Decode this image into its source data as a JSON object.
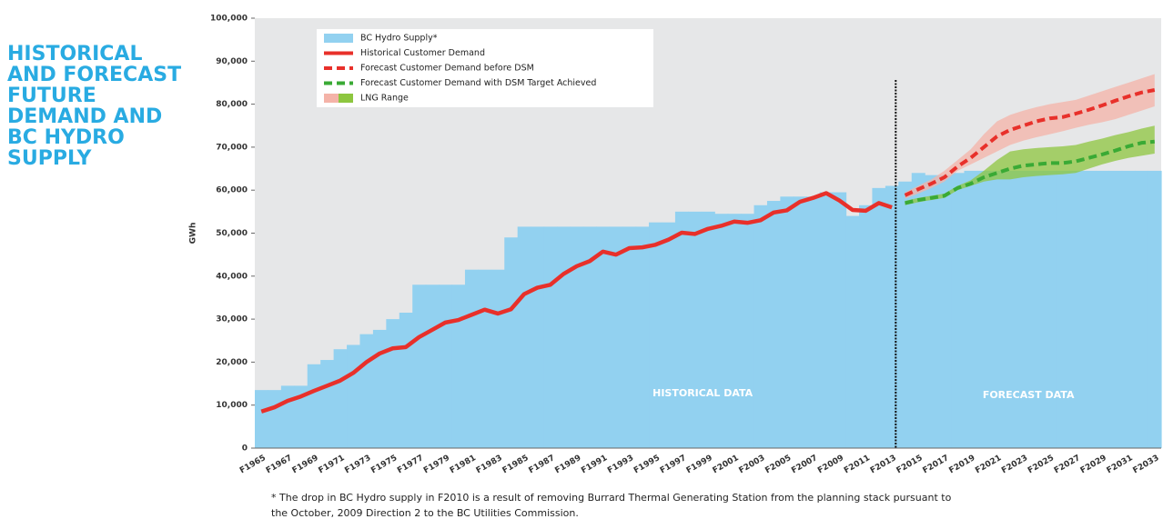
{
  "chart_data": {
    "type": "supply-demand",
    "title": [
      "HISTORICAL",
      "AND FORECAST",
      "FUTURE",
      "DEMAND AND",
      "BC HYDRO",
      "SUPPLY"
    ],
    "y_label": "GWh",
    "footnote": [
      "* The drop in BC Hydro supply in F2010 is a result of removing Burrard Thermal Generating Station from the planning stack pursuant to",
      "the October, 2009 Direction 2 to the BC Utilities Commission."
    ],
    "annotations": [
      "HISTORICAL DATA",
      "FORECAST DATA"
    ],
    "categories": [
      "F1965",
      null,
      "F1967",
      null,
      "F1969",
      null,
      "F1971",
      null,
      "F1973",
      null,
      "F1975",
      null,
      "F1977",
      null,
      "F1979",
      null,
      "F1981",
      null,
      "F1983",
      null,
      "F1985",
      null,
      "F1987",
      null,
      "F1989",
      null,
      "F1991",
      null,
      "F1993",
      null,
      "F1995",
      null,
      "F1997",
      null,
      "F1999",
      null,
      "F2001",
      null,
      "F2003",
      null,
      "F2005",
      null,
      "F2007",
      null,
      "F2009",
      null,
      "F2011",
      null,
      "F2013",
      null,
      "F2015",
      null,
      "F2017",
      null,
      "F2019",
      null,
      "F2021",
      null,
      "F2023",
      null,
      "F2025",
      null,
      "F2027",
      null,
      "F2029",
      null,
      "F2031",
      null,
      "F2033"
    ],
    "ylim": [
      0,
      100000
    ],
    "yticks": [
      0,
      {
        "value": 10000,
        "label": "10,000"
      },
      {
        "value": 20000,
        "label": "20,000"
      },
      {
        "value": 30000,
        "label": "30,000"
      },
      {
        "value": 40000,
        "label": "40,000"
      },
      {
        "value": 50000,
        "label": "50,000"
      },
      {
        "value": 60000,
        "label": "60,000"
      },
      {
        "value": 70000,
        "label": "70,000"
      },
      {
        "value": 80000,
        "label": "80,000"
      },
      {
        "value": 90000,
        "label": "90,000"
      },
      {
        "value": 100000,
        "label": "100,000"
      }
    ],
    "supply": {
      "name": "BC Hydro Supply*",
      "color": "#92d1f0",
      "values": [
        13500,
        13500,
        14500,
        14500,
        19500,
        20500,
        23000,
        24000,
        26500,
        27500,
        30000,
        31500,
        38000,
        38000,
        38000,
        38000,
        41500,
        41500,
        41500,
        49000,
        51500,
        51500,
        51500,
        51500,
        51500,
        51500,
        51500,
        51500,
        51500,
        51500,
        52500,
        52500,
        55000,
        55000,
        55000,
        54500,
        54500,
        54500,
        56500,
        57500,
        58500,
        58500,
        58500,
        59500,
        59500,
        54000,
        56500,
        60500,
        61000,
        62000,
        64000,
        63500,
        63500,
        64000,
        64500,
        64500,
        64500,
        64500,
        64500,
        64500,
        64500,
        64500,
        64500,
        64500,
        64500,
        64500,
        64500,
        64500,
        64500
      ]
    },
    "series": [
      {
        "name": "Historical Customer Demand",
        "color": "#e8302a",
        "dashed": false,
        "values": [
          8500,
          9500,
          11000,
          12000,
          13300,
          14500,
          15700,
          17500,
          20000,
          22000,
          23200,
          23500,
          25800,
          27500,
          29200,
          29800,
          31000,
          32200,
          31300,
          32300,
          35800,
          37300,
          38000,
          40500,
          42300,
          43500,
          45700,
          45000,
          46500,
          46700,
          47300,
          48500,
          50100,
          49800,
          51000,
          51700,
          52700,
          52400,
          53000,
          54800,
          55300,
          57300,
          58200,
          59300,
          57600,
          55400,
          55200,
          57000,
          56000,
          null,
          null,
          null,
          null,
          null,
          null,
          null,
          null,
          null,
          null,
          null,
          null,
          null,
          null,
          null,
          null,
          null,
          null,
          null,
          null
        ]
      },
      {
        "name": "Forecast Customer Demand before DSM",
        "color": "#e8302a",
        "dashed": true,
        "values": [
          null,
          null,
          null,
          null,
          null,
          null,
          null,
          null,
          null,
          null,
          null,
          null,
          null,
          null,
          null,
          null,
          null,
          null,
          null,
          null,
          null,
          null,
          null,
          null,
          null,
          null,
          null,
          null,
          null,
          null,
          null,
          null,
          null,
          null,
          null,
          null,
          null,
          null,
          null,
          null,
          null,
          null,
          null,
          null,
          null,
          null,
          null,
          null,
          null,
          58800,
          60200,
          61500,
          63000,
          65500,
          67500,
          70000,
          72500,
          74000,
          75000,
          76000,
          76700,
          77000,
          77800,
          78700,
          79700,
          80800,
          81800,
          82700,
          83300
        ]
      },
      {
        "name": "Forecast Customer Demand with DSM Target Achieved",
        "color": "#3aaa35",
        "dashed": true,
        "values": [
          null,
          null,
          null,
          null,
          null,
          null,
          null,
          null,
          null,
          null,
          null,
          null,
          null,
          null,
          null,
          null,
          null,
          null,
          null,
          null,
          null,
          null,
          null,
          null,
          null,
          null,
          null,
          null,
          null,
          null,
          null,
          null,
          null,
          null,
          null,
          null,
          null,
          null,
          null,
          null,
          null,
          null,
          null,
          null,
          null,
          null,
          null,
          null,
          null,
          57000,
          57700,
          58200,
          58700,
          60500,
          61500,
          63000,
          64000,
          65000,
          65700,
          66000,
          66300,
          66300,
          66700,
          67500,
          68300,
          69200,
          70200,
          71000,
          71300
        ]
      }
    ],
    "band_legend": "LNG Range",
    "bands": [
      {
        "color": "#f4b3a8",
        "low": [
          null,
          null,
          null,
          null,
          null,
          null,
          null,
          null,
          null,
          null,
          null,
          null,
          null,
          null,
          null,
          null,
          null,
          null,
          null,
          null,
          null,
          null,
          null,
          null,
          null,
          null,
          null,
          null,
          null,
          null,
          null,
          null,
          null,
          null,
          null,
          null,
          null,
          null,
          null,
          null,
          null,
          null,
          null,
          null,
          null,
          null,
          null,
          null,
          null,
          58000,
          59200,
          60500,
          62000,
          64500,
          66000,
          67500,
          69000,
          70500,
          71500,
          72300,
          73000,
          73700,
          74500,
          75200,
          75800,
          76500,
          77500,
          78500,
          79500
        ],
        "high": [
          null,
          null,
          null,
          null,
          null,
          null,
          null,
          null,
          null,
          null,
          null,
          null,
          null,
          null,
          null,
          null,
          null,
          null,
          null,
          null,
          null,
          null,
          null,
          null,
          null,
          null,
          null,
          null,
          null,
          null,
          null,
          null,
          null,
          null,
          null,
          null,
          null,
          null,
          null,
          null,
          null,
          null,
          null,
          null,
          null,
          null,
          null,
          null,
          null,
          59500,
          61000,
          62500,
          64500,
          67000,
          69500,
          73000,
          76000,
          77500,
          78500,
          79300,
          80000,
          80500,
          81000,
          82000,
          83000,
          84000,
          85000,
          86000,
          87000
        ]
      },
      {
        "color": "#8dc63f",
        "low": [
          null,
          null,
          null,
          null,
          null,
          null,
          null,
          null,
          null,
          null,
          null,
          null,
          null,
          null,
          null,
          null,
          null,
          null,
          null,
          null,
          null,
          null,
          null,
          null,
          null,
          null,
          null,
          null,
          null,
          null,
          null,
          null,
          null,
          null,
          null,
          null,
          null,
          null,
          null,
          null,
          null,
          null,
          null,
          null,
          null,
          null,
          null,
          null,
          null,
          56500,
          57200,
          57700,
          58200,
          60000,
          61000,
          62000,
          62500,
          62500,
          63000,
          63300,
          63500,
          63700,
          64000,
          65000,
          66000,
          66800,
          67500,
          68000,
          68500
        ],
        "high": [
          null,
          null,
          null,
          null,
          null,
          null,
          null,
          null,
          null,
          null,
          null,
          null,
          null,
          null,
          null,
          null,
          null,
          null,
          null,
          null,
          null,
          null,
          null,
          null,
          null,
          null,
          null,
          null,
          null,
          null,
          null,
          null,
          null,
          null,
          null,
          null,
          null,
          null,
          null,
          null,
          null,
          null,
          null,
          null,
          null,
          null,
          null,
          null,
          null,
          57500,
          58200,
          58700,
          59200,
          61000,
          62300,
          64500,
          67000,
          69000,
          69500,
          69800,
          70000,
          70200,
          70500,
          71300,
          72000,
          72800,
          73500,
          74300,
          75000
        ]
      }
    ]
  }
}
